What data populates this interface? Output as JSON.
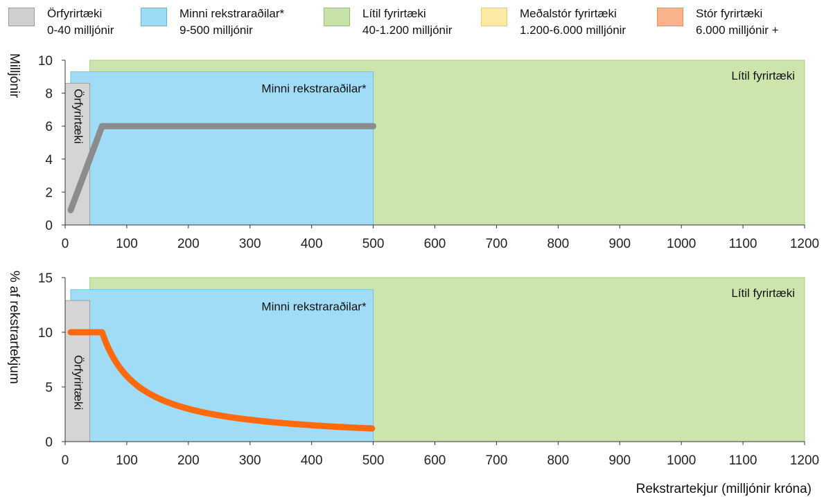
{
  "legend": [
    {
      "line1": "Örfyrirtæki",
      "line2": "0-40 milljónir",
      "color": "#d0d0d0",
      "border": "#9a9a9a"
    },
    {
      "line1": "Minni rekstraraðilar*",
      "line2": "9-500 milljónir",
      "color": "#9ddcf6",
      "border": "#5bb8de"
    },
    {
      "line1": "Lítil fyrirtæki",
      "line2": "40-1.200 milljónir",
      "color": "#c7e3a8",
      "border": "#93c06a"
    },
    {
      "line1": "Meðalstór fyrirtæki",
      "line2": "1.200-6.000 milljónir",
      "color": "#fbeaa4",
      "border": "#e4cf6a"
    },
    {
      "line1": "Stór fyrirtæki",
      "line2": "6.000 milljónir +",
      "color": "#f9b48e",
      "border": "#ee8a55"
    }
  ],
  "colors": {
    "orfyrirtaeki": "#d5d5d5",
    "minni": "#a1dcf7",
    "litil": "#cbe5ad",
    "line_top": "#8c8c8c",
    "line_bottom": "#ff6a0f"
  },
  "chart_data": [
    {
      "type": "line",
      "ylabel": "Milljónir",
      "xlabel": "",
      "xlim": [
        0,
        1200
      ],
      "ylim": [
        0,
        10
      ],
      "x_ticks": [
        0,
        100,
        200,
        300,
        400,
        500,
        600,
        700,
        800,
        900,
        1000,
        1100,
        1200
      ],
      "y_ticks": [
        0,
        2,
        4,
        6,
        8,
        10
      ],
      "zones": [
        {
          "name": "Lítil fyrirtæki",
          "x0": 40,
          "x1": 1200,
          "y_top": 10
        },
        {
          "name": "Minni rekstraraðilar*",
          "x0": 9,
          "x1": 500,
          "y_top": 9.3
        },
        {
          "name": "Örfyrirtæki",
          "x0": 0,
          "x1": 40,
          "y_top": 8.6
        }
      ],
      "series": [
        {
          "values_x": [
            9,
            60,
            500
          ],
          "values_y": [
            0.9,
            6.0,
            6.0
          ]
        }
      ]
    },
    {
      "type": "line",
      "ylabel": "% af rekstrartekjum",
      "xlabel": "Rekstrartekjur (milljónir króna)",
      "xlim": [
        0,
        1200
      ],
      "ylim": [
        0,
        15
      ],
      "x_ticks": [
        0,
        100,
        200,
        300,
        400,
        500,
        600,
        700,
        800,
        900,
        1000,
        1100,
        1200
      ],
      "y_ticks": [
        0,
        5,
        10,
        15
      ],
      "zones": [
        {
          "name": "Lítil fyrirtæki",
          "x0": 40,
          "x1": 1200,
          "y_top": 15
        },
        {
          "name": "Minni rekstraraðilar*",
          "x0": 9,
          "x1": 500,
          "y_top": 13.9
        },
        {
          "name": "Örfyrirtæki",
          "x0": 0,
          "x1": 40,
          "y_top": 12.9
        }
      ],
      "series": [
        {
          "values_x": [
            9,
            60,
            80,
            100,
            150,
            200,
            250,
            300,
            350,
            400,
            450,
            500
          ],
          "values_y": [
            10,
            10,
            7.5,
            6,
            4,
            3,
            2.4,
            2,
            1.71,
            1.5,
            1.33,
            1.2
          ]
        }
      ]
    }
  ]
}
